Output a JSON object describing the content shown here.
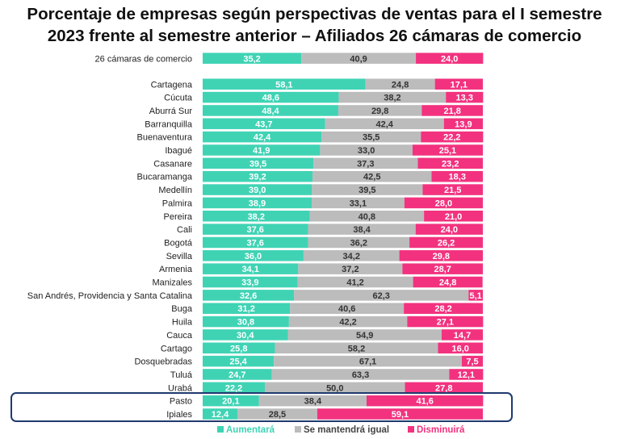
{
  "chart_data": {
    "type": "bar",
    "orientation": "horizontal",
    "stacked": true,
    "title": "Porcentaje de empresas según perspectivas de ventas para el I semestre 2023 frente al semestre anterior –  Afiliados 26 cámaras de comercio",
    "title_lines": [
      "Porcentaje de empresas según perspectivas de ventas para el I semestre",
      "2023 frente al semestre anterior –  Afiliados 26 cámaras de comercio"
    ],
    "xlim": [
      0,
      100
    ],
    "grid": false,
    "legend_position": "bottom",
    "categories": [
      "26 cámaras de comercio",
      "Cartagena",
      "Cúcuta",
      "Aburrá Sur",
      "Barranquilla",
      "Buenaventura",
      "Ibagué",
      "Casanare",
      "Bucaramanga",
      "Medellín",
      "Palmira",
      "Pereira",
      "Cali",
      "Bogotá",
      "Sevilla",
      "Armenia",
      "Manizales",
      "San Andrés, Providencia y Santa Catalina",
      "Buga",
      "Huila",
      "Cauca",
      "Cartago",
      "Dosquebradas",
      "Tuluá",
      "Urabá",
      "Pasto",
      "Ipiales"
    ],
    "series": [
      {
        "name": "Aumentará",
        "color": "#3fd3b4",
        "values": [
          35.2,
          58.1,
          48.6,
          48.4,
          43.7,
          42.4,
          41.9,
          39.5,
          39.2,
          39.0,
          38.9,
          38.2,
          37.6,
          37.6,
          36.0,
          34.1,
          33.9,
          32.6,
          31.2,
          30.8,
          30.4,
          25.8,
          25.4,
          24.7,
          22.2,
          20.1,
          12.4
        ],
        "labels": [
          "35,2",
          "58,1",
          "48,6",
          "48,4",
          "43,7",
          "42,4",
          "41,9",
          "39,5",
          "39,2",
          "39,0",
          "38,9",
          "38,2",
          "37,6",
          "37,6",
          "36,0",
          "34,1",
          "33,9",
          "32,6",
          "31,2",
          "30,8",
          "30,4",
          "25,8",
          "25,4",
          "24,7",
          "22,2",
          "20,1",
          "12,4"
        ]
      },
      {
        "name": "Se mantendrá igual",
        "color": "#bcbcbc",
        "values": [
          40.9,
          24.8,
          38.2,
          29.8,
          42.4,
          35.5,
          33.0,
          37.3,
          42.5,
          39.5,
          33.1,
          40.8,
          38.4,
          36.2,
          34.2,
          37.2,
          41.2,
          62.3,
          40.6,
          42.2,
          54.9,
          58.2,
          67.1,
          63.3,
          50.0,
          38.4,
          28.5
        ],
        "labels": [
          "40,9",
          "24,8",
          "38,2",
          "29,8",
          "42,4",
          "35,5",
          "33,0",
          "37,3",
          "42,5",
          "39,5",
          "33,1",
          "40,8",
          "38,4",
          "36,2",
          "34,2",
          "37,2",
          "41,2",
          "62,3",
          "40,6",
          "42,2",
          "54,9",
          "58,2",
          "67,1",
          "63,3",
          "50,0",
          "38,4",
          "28,5"
        ]
      },
      {
        "name": "Disminuirá",
        "color": "#f2327f",
        "values": [
          24.0,
          17.1,
          13.3,
          21.8,
          13.9,
          22.2,
          25.1,
          23.2,
          18.3,
          21.5,
          28.0,
          21.0,
          24.0,
          26.2,
          29.8,
          28.7,
          24.8,
          5.1,
          28.2,
          27.1,
          14.7,
          16.0,
          7.5,
          12.1,
          27.8,
          41.6,
          59.1
        ],
        "labels": [
          "24,0",
          "17,1",
          "13,3",
          "21,8",
          "13,9",
          "22,2",
          "25,1",
          "23,2",
          "18,3",
          "21,5",
          "28,0",
          "21,0",
          "24,0",
          "26,2",
          "29,8",
          "28,7",
          "24,8",
          "5,1",
          "28,2",
          "27,1",
          "14,7",
          "16,0",
          "7,5",
          "12,1",
          "27,8",
          "41,6",
          "59,1"
        ]
      }
    ],
    "highlighted_categories": [
      "Pasto",
      "Ipiales"
    ]
  }
}
